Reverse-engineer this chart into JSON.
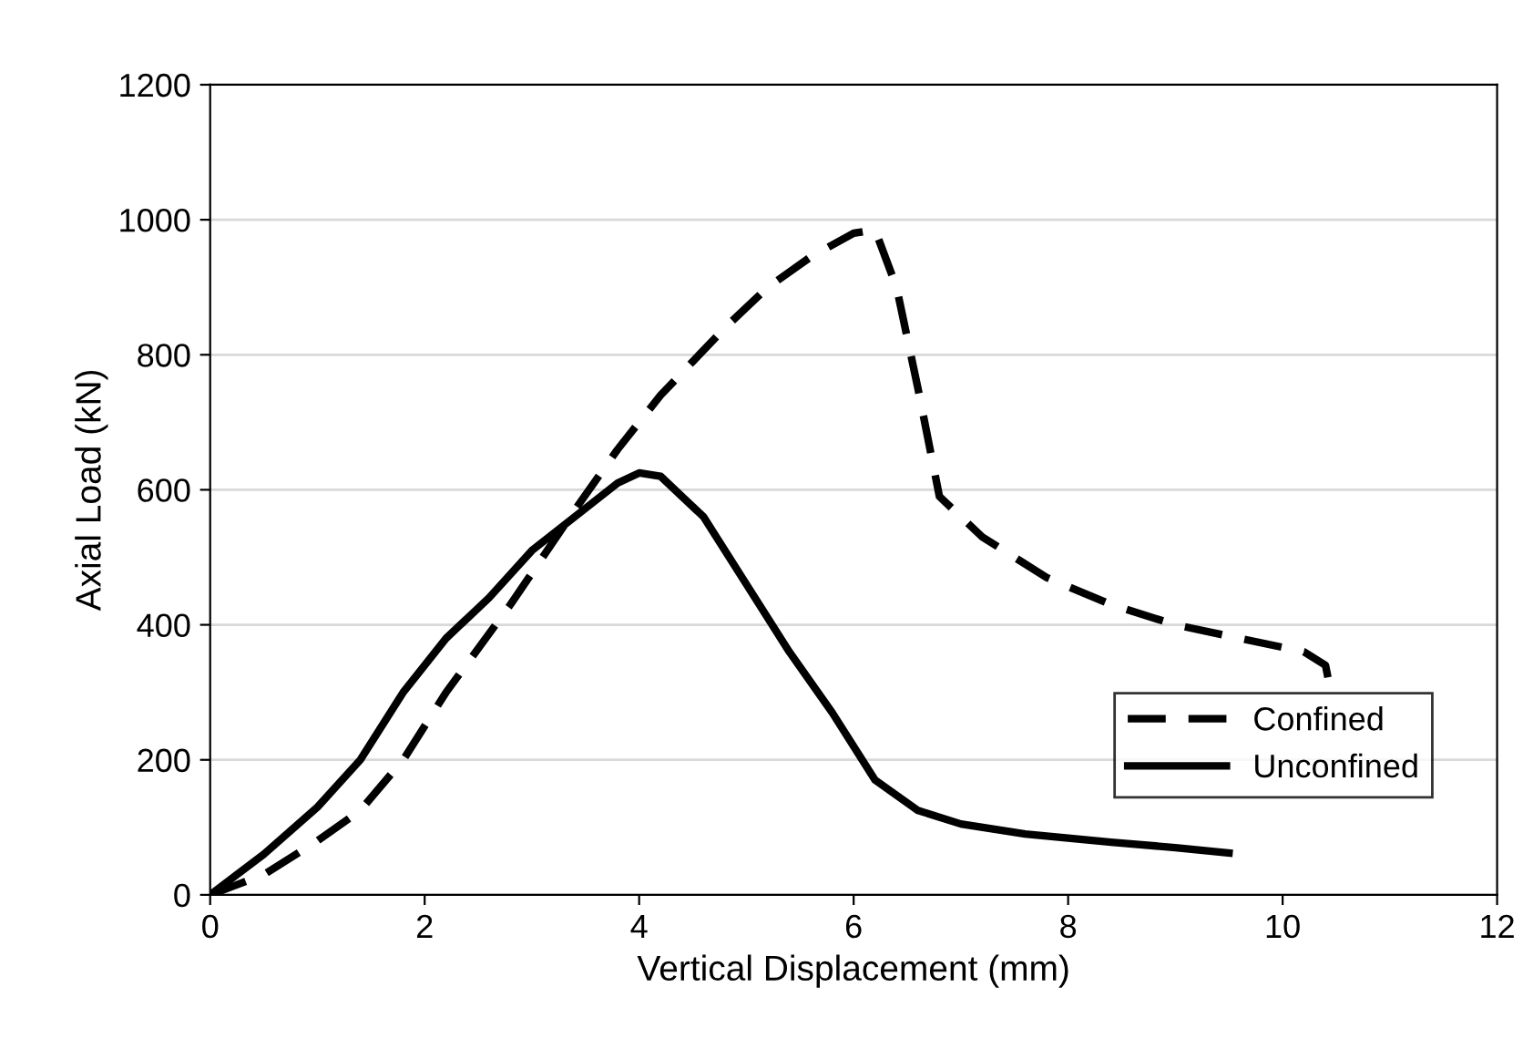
{
  "chart_data": {
    "type": "line",
    "xlabel": "Vertical Displacement (mm)",
    "ylabel": "Axial Load (kN)",
    "xlim": [
      0,
      12
    ],
    "ylim": [
      0,
      1200
    ],
    "xticks": [
      0,
      2,
      4,
      6,
      8,
      10,
      12
    ],
    "yticks": [
      0,
      200,
      400,
      600,
      800,
      1000,
      1200
    ],
    "grid": "y",
    "legend": "bottom right",
    "marker": "none",
    "series": [
      {
        "name": "Confined",
        "color": "#000000",
        "line_style": "dashed",
        "x": [
          0,
          0.5,
          1,
          1.4,
          1.8,
          2.2,
          2.8,
          3.4,
          3.8,
          4.2,
          4.8,
          5.2,
          5.6,
          6.0,
          6.2,
          6.4,
          6.6,
          6.8,
          7.2,
          7.8,
          8.4,
          9.0,
          9.6,
          10.2,
          10.4,
          10.45
        ],
        "values": [
          0,
          30,
          80,
          125,
          200,
          300,
          430,
          570,
          660,
          740,
          840,
          900,
          945,
          980,
          985,
          900,
          750,
          590,
          530,
          470,
          430,
          400,
          380,
          360,
          340,
          300
        ]
      },
      {
        "name": "Unconfined",
        "color": "#000000",
        "line_style": "solid",
        "x": [
          0,
          0.5,
          1,
          1.4,
          1.8,
          2.2,
          2.6,
          3.0,
          3.4,
          3.8,
          4.0,
          4.2,
          4.6,
          5.0,
          5.4,
          5.8,
          6.2,
          6.6,
          7.0,
          7.6,
          8.4,
          9.0,
          9.5
        ],
        "values": [
          0,
          60,
          130,
          200,
          300,
          380,
          440,
          510,
          560,
          610,
          625,
          620,
          560,
          460,
          360,
          270,
          170,
          125,
          105,
          90,
          78,
          70,
          62
        ]
      }
    ]
  }
}
